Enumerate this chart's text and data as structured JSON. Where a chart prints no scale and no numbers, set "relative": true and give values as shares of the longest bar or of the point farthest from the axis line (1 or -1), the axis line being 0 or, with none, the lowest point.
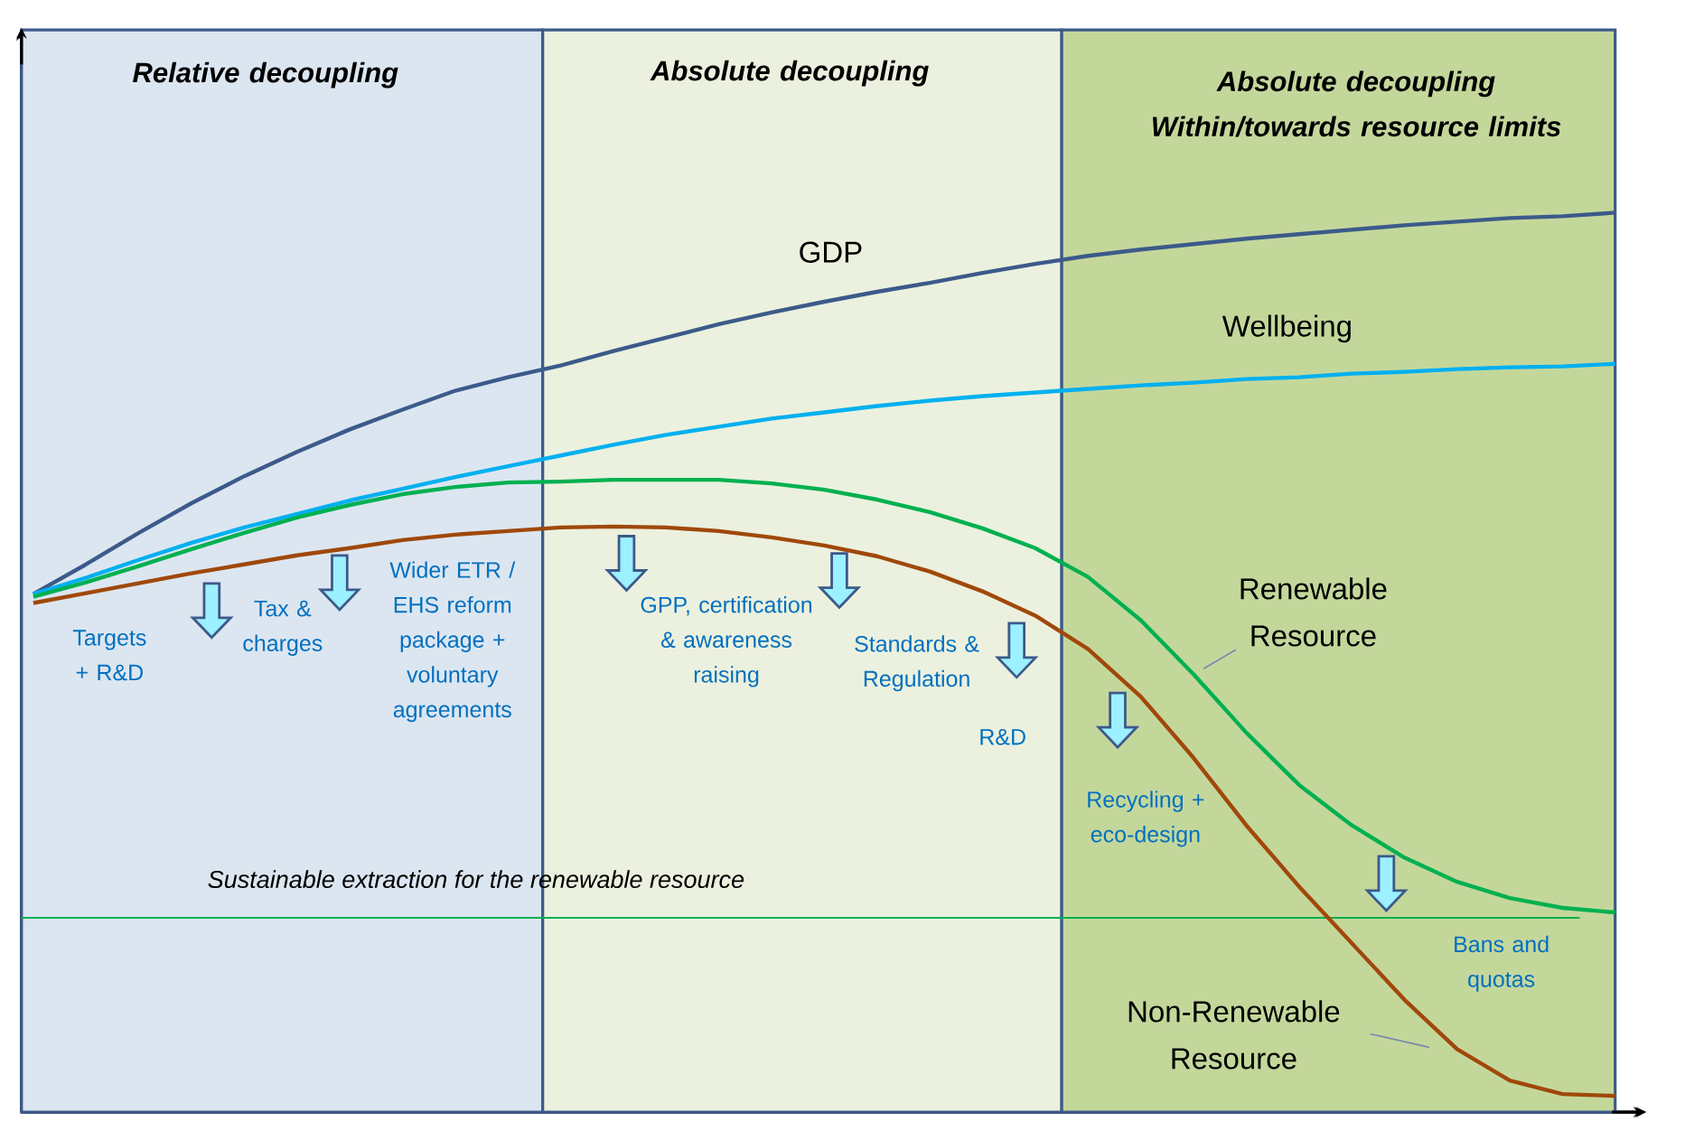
{
  "chart_data": {
    "type": "line",
    "relative": true,
    "categories": [
      null,
      null,
      null,
      null,
      null,
      null,
      null,
      null,
      null,
      null,
      null,
      null,
      null,
      null,
      null,
      null,
      null,
      null,
      null,
      null,
      null,
      null,
      null,
      null,
      null,
      null,
      null,
      null,
      null,
      null,
      null
    ],
    "series": [
      {
        "name": "GDP",
        "color": "#3c5a8a",
        "values": [
          0.576,
          0.609,
          0.644,
          0.677,
          0.707,
          0.734,
          0.759,
          0.781,
          0.802,
          0.817,
          0.83,
          0.846,
          0.861,
          0.876,
          0.889,
          0.901,
          0.912,
          0.922,
          0.933,
          0.943,
          0.952,
          0.959,
          0.965,
          0.971,
          0.976,
          0.981,
          0.986,
          0.99,
          0.994,
          0.996,
          1.0
        ]
      },
      {
        "name": "Wellbeing",
        "color": "#00b0f0",
        "values": [
          0.576,
          0.594,
          0.614,
          0.633,
          0.65,
          0.665,
          0.68,
          0.693,
          0.706,
          0.718,
          0.73,
          0.742,
          0.753,
          0.762,
          0.771,
          0.778,
          0.785,
          0.791,
          0.796,
          0.8,
          0.804,
          0.808,
          0.811,
          0.815,
          0.817,
          0.821,
          0.823,
          0.826,
          0.828,
          0.829,
          0.832
        ]
      },
      {
        "name": "Renewable Resource",
        "color": "#00b050",
        "values": [
          0.573,
          0.589,
          0.607,
          0.626,
          0.644,
          0.661,
          0.675,
          0.687,
          0.695,
          0.7,
          0.701,
          0.703,
          0.703,
          0.703,
          0.699,
          0.692,
          0.681,
          0.667,
          0.649,
          0.627,
          0.595,
          0.547,
          0.487,
          0.422,
          0.364,
          0.319,
          0.283,
          0.256,
          0.238,
          0.227,
          0.222
        ]
      },
      {
        "name": "Non-Renewable Resource",
        "color": "#a0480a",
        "values": [
          0.566,
          0.577,
          0.588,
          0.599,
          0.609,
          0.619,
          0.627,
          0.636,
          0.642,
          0.646,
          0.65,
          0.651,
          0.65,
          0.646,
          0.639,
          0.63,
          0.618,
          0.601,
          0.579,
          0.552,
          0.515,
          0.462,
          0.394,
          0.319,
          0.251,
          0.188,
          0.125,
          0.07,
          0.035,
          0.02,
          0.018
        ]
      }
    ],
    "ref_lines": [
      {
        "axis": "y",
        "value": 0.216,
        "label": "Sustainable extraction for the renewable resource",
        "color": "#00b050"
      }
    ],
    "annotations": [
      "Relative decoupling",
      "Absolute decoupling",
      "Absolute decoupling Within/towards resource limits",
      "Targets + R&D",
      "Tax & charges",
      "Wider ETR / EHS reform package + voluntary agreements",
      "GPP, certification & awareness raising",
      "Standards & Regulation",
      "R&D",
      "Recycling + eco-design",
      "Bans and quotas"
    ]
  }
}
